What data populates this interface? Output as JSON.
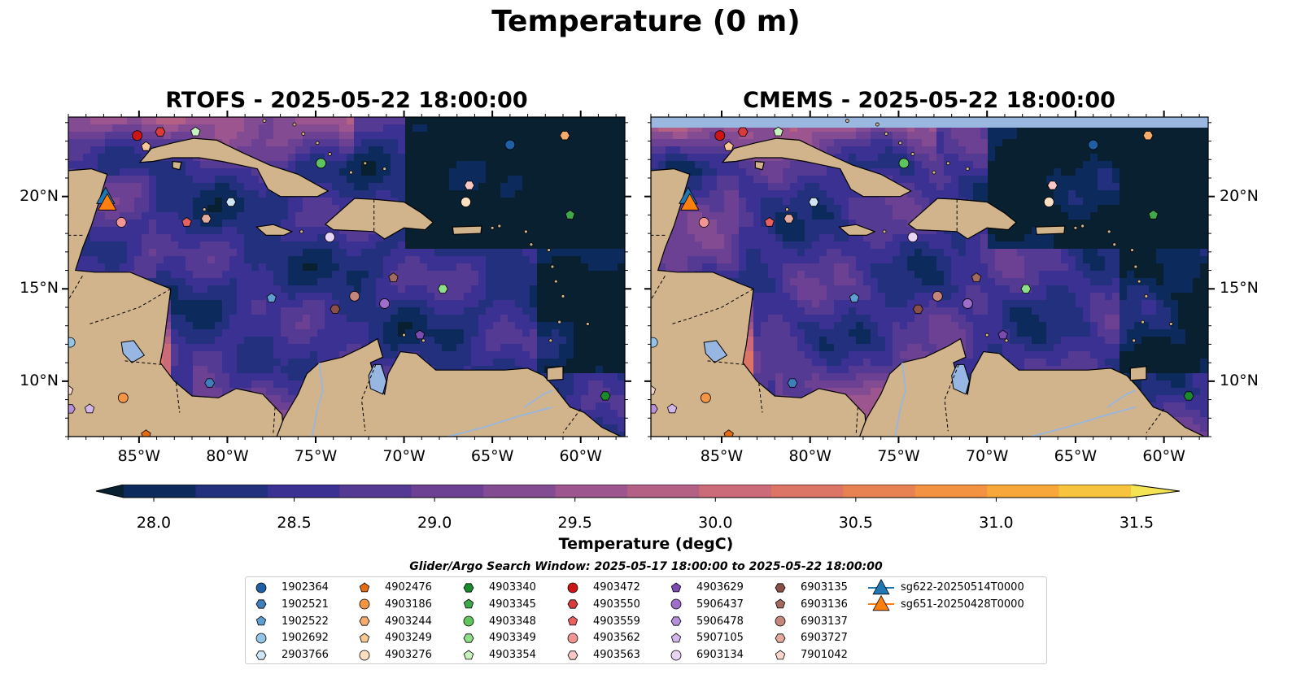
{
  "title": "Temperature (0 m)",
  "panels": [
    {
      "id": "rtofs",
      "title": "RTOFS - 2025-05-22 18:00:00"
    },
    {
      "id": "cmems",
      "title": "CMEMS - 2025-05-22 18:00:00"
    }
  ],
  "map_extent": {
    "lon": [
      -89.0,
      -57.5
    ],
    "lat": [
      7.0,
      24.3
    ]
  },
  "lon_ticks": [
    "85°W",
    "80°W",
    "75°W",
    "70°W",
    "65°W",
    "60°W"
  ],
  "lat_ticks": [
    "20°N",
    "15°N",
    "10°N"
  ],
  "colorbar": {
    "label": "Temperature (degC)",
    "min": 28.0,
    "max": 31.5,
    "ticks": [
      "28.0",
      "28.5",
      "29.0",
      "29.5",
      "30.0",
      "30.5",
      "31.0",
      "31.5"
    ],
    "colors": [
      "#082030",
      "#0d2a5c",
      "#22307e",
      "#3a3192",
      "#553a94",
      "#6c4194",
      "#834b92",
      "#9c558e",
      "#b46085",
      "#cb6a78",
      "#dc7566",
      "#e98252",
      "#f39240",
      "#f8a83a",
      "#f7c440",
      "#f4e352"
    ]
  },
  "search_window": "Glider/Argo Search Window: 2025-05-17 18:00:00 to 2025-05-22 18:00:00",
  "legend": [
    {
      "label": "1902364",
      "shape": "circle",
      "color": "#1f5fa6"
    },
    {
      "label": "1902521",
      "shape": "hexagon",
      "color": "#3f80bc"
    },
    {
      "label": "1902522",
      "shape": "pentagon",
      "color": "#5f9ed1"
    },
    {
      "label": "1902692",
      "shape": "circle",
      "color": "#94c4e6"
    },
    {
      "label": "2903766",
      "shape": "hexagon",
      "color": "#cfe5f5"
    },
    {
      "label": "4902476",
      "shape": "pentagon",
      "color": "#e56b10"
    },
    {
      "label": "4903186",
      "shape": "circle",
      "color": "#f49543"
    },
    {
      "label": "4903244",
      "shape": "hexagon",
      "color": "#f7ac6c"
    },
    {
      "label": "4903249",
      "shape": "pentagon",
      "color": "#f9c794"
    },
    {
      "label": "4903276",
      "shape": "circle",
      "color": "#fde0c2"
    },
    {
      "label": "4903340",
      "shape": "hexagon",
      "color": "#1b8a2c"
    },
    {
      "label": "4903345",
      "shape": "pentagon",
      "color": "#3ea84a"
    },
    {
      "label": "4903348",
      "shape": "circle",
      "color": "#5ec55e"
    },
    {
      "label": "4903349",
      "shape": "hexagon",
      "color": "#90dd8a"
    },
    {
      "label": "4903354",
      "shape": "pentagon",
      "color": "#c7f1bf"
    },
    {
      "label": "4903472",
      "shape": "circle",
      "color": "#cc1515"
    },
    {
      "label": "4903550",
      "shape": "hexagon",
      "color": "#d93a3a"
    },
    {
      "label": "4903559",
      "shape": "pentagon",
      "color": "#e86060"
    },
    {
      "label": "4903562",
      "shape": "circle",
      "color": "#f39595"
    },
    {
      "label": "4903563",
      "shape": "hexagon",
      "color": "#fbc6c6"
    },
    {
      "label": "4903629",
      "shape": "pentagon",
      "color": "#7a4bb0"
    },
    {
      "label": "5906437",
      "shape": "circle",
      "color": "#9e6fca"
    },
    {
      "label": "5906478",
      "shape": "hexagon",
      "color": "#b88fda"
    },
    {
      "label": "5907105",
      "shape": "pentagon",
      "color": "#d3b6ea"
    },
    {
      "label": "6903134",
      "shape": "circle",
      "color": "#e8d4f5"
    },
    {
      "label": "6903135",
      "shape": "hexagon",
      "color": "#8a5048"
    },
    {
      "label": "6903136",
      "shape": "pentagon",
      "color": "#a36a60"
    },
    {
      "label": "6903137",
      "shape": "circle",
      "color": "#c4867b"
    },
    {
      "label": "6903727",
      "shape": "hexagon",
      "color": "#e3ab9e"
    },
    {
      "label": "7901042",
      "shape": "pentagon",
      "color": "#fbd6cc"
    },
    {
      "label": "sg622-20250514T0000",
      "shape": "triangle",
      "color": "#1f77b4"
    },
    {
      "label": "sg651-20250428T0000",
      "shape": "triangle",
      "color": "#ff7f0e"
    }
  ],
  "platform_positions": [
    {
      "label": "1902364",
      "lon": -64.0,
      "lat": 22.8
    },
    {
      "label": "1902521",
      "lon": -81.0,
      "lat": 9.9
    },
    {
      "label": "1902522",
      "lon": -77.5,
      "lat": 14.5
    },
    {
      "label": "1902692",
      "lon": -88.9,
      "lat": 12.1
    },
    {
      "label": "2903766",
      "lon": -79.8,
      "lat": 19.7
    },
    {
      "label": "4902476",
      "lon": -84.6,
      "lat": 7.1
    },
    {
      "label": "4903186",
      "lon": -85.9,
      "lat": 9.1
    },
    {
      "label": "4903244",
      "lon": -60.9,
      "lat": 23.3
    },
    {
      "label": "4903249",
      "lon": -84.6,
      "lat": 22.7
    },
    {
      "label": "4903276",
      "lon": -66.5,
      "lat": 19.7
    },
    {
      "label": "4903340",
      "lon": -58.6,
      "lat": 9.2
    },
    {
      "label": "4903345",
      "lon": -60.6,
      "lat": 19.0
    },
    {
      "label": "4903348",
      "lon": -74.7,
      "lat": 21.8
    },
    {
      "label": "4903349",
      "lon": -67.8,
      "lat": 15.0
    },
    {
      "label": "4903354",
      "lon": -81.8,
      "lat": 23.5
    },
    {
      "label": "4903472",
      "lon": -85.1,
      "lat": 23.3
    },
    {
      "label": "4903550",
      "lon": -83.8,
      "lat": 23.5
    },
    {
      "label": "4903559",
      "lon": -82.3,
      "lat": 18.6
    },
    {
      "label": "4903562",
      "lon": -86.0,
      "lat": 18.6
    },
    {
      "label": "4903563",
      "lon": -66.3,
      "lat": 20.6
    },
    {
      "label": "4903629",
      "lon": -69.1,
      "lat": 12.5
    },
    {
      "label": "5906437",
      "lon": -71.1,
      "lat": 14.2
    },
    {
      "label": "5906478",
      "lon": -88.9,
      "lat": 8.5
    },
    {
      "label": "5907105",
      "lon": -87.8,
      "lat": 8.5
    },
    {
      "label": "6903134",
      "lon": -74.2,
      "lat": 17.8
    },
    {
      "label": "6903135",
      "lon": -73.9,
      "lat": 13.9
    },
    {
      "label": "6903136",
      "lon": -70.6,
      "lat": 15.6
    },
    {
      "label": "6903137",
      "lon": -72.8,
      "lat": 14.6
    },
    {
      "label": "6903727",
      "lon": -81.2,
      "lat": 18.8
    },
    {
      "label": "7901042",
      "lon": -89.0,
      "lat": 9.5
    },
    {
      "label": "sg622-20250514T0000",
      "lon": -86.8,
      "lat": 19.6
    },
    {
      "label": "sg651-20250428T0000",
      "lon": -86.8,
      "lat": 19.6
    }
  ]
}
